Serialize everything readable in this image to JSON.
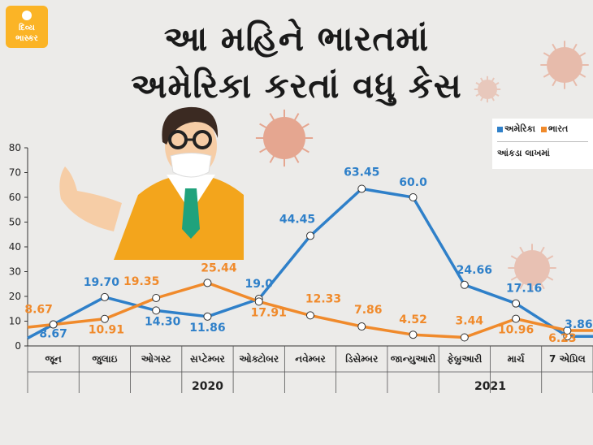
{
  "logo": {
    "line1": "દિવ્ય",
    "line2": "ભાસ્કર"
  },
  "title": {
    "line1": "આ મહિને ભારતમાં",
    "line2": "અમેરિકા કરતાં વધુ કેસ"
  },
  "legend": {
    "series1": "અમેરિકા",
    "series2": "ભારત",
    "unit": "આંકડા લાખમાં"
  },
  "colors": {
    "us": "#2f80c9",
    "india": "#f08a2b",
    "background": "#ecebe9",
    "logo": "#fbb426"
  },
  "chart_data": {
    "type": "line",
    "categories": [
      "જૂન",
      "જુલાઇ",
      "ઓગસ્ટ",
      "સપ્ટેમ્બર",
      "ઓક્ટોબર",
      "નવેમ્બર",
      "ડિસેમ્બર",
      "જાન્યુઆરી",
      "ફેબ્રુઆરી",
      "માર્ચ",
      "7 એપ્રિલ"
    ],
    "year_groups": [
      {
        "label": "2020",
        "categories": 7
      },
      {
        "label": "2021",
        "categories": 4
      }
    ],
    "series": [
      {
        "name": "અમેરિકા",
        "color": "#2f80c9",
        "values": [
          8.67,
          19.7,
          14.3,
          11.86,
          19.0,
          44.45,
          63.45,
          60.0,
          24.66,
          17.16,
          3.86
        ],
        "labels": [
          "8.67",
          "19.70",
          "14.30",
          "11.86",
          "19.0",
          "44.45",
          "63.45",
          "60.0",
          "24.66",
          "17.16",
          "3.86"
        ]
      },
      {
        "name": "ભારત",
        "color": "#f08a2b",
        "values": [
          8.67,
          10.91,
          19.35,
          25.44,
          17.91,
          12.33,
          7.86,
          4.52,
          3.44,
          10.96,
          6.23
        ],
        "labels": [
          "8.67",
          "10.91",
          "19.35",
          "25.44",
          "17.91",
          "12.33",
          "7.86",
          "4.52",
          "3.44",
          "10.96",
          "6.23"
        ]
      }
    ],
    "ylim": [
      0,
      80
    ],
    "yticks": [
      0,
      10,
      20,
      30,
      40,
      50,
      60,
      70,
      80
    ],
    "grid": false,
    "legend_position": "top-right"
  }
}
